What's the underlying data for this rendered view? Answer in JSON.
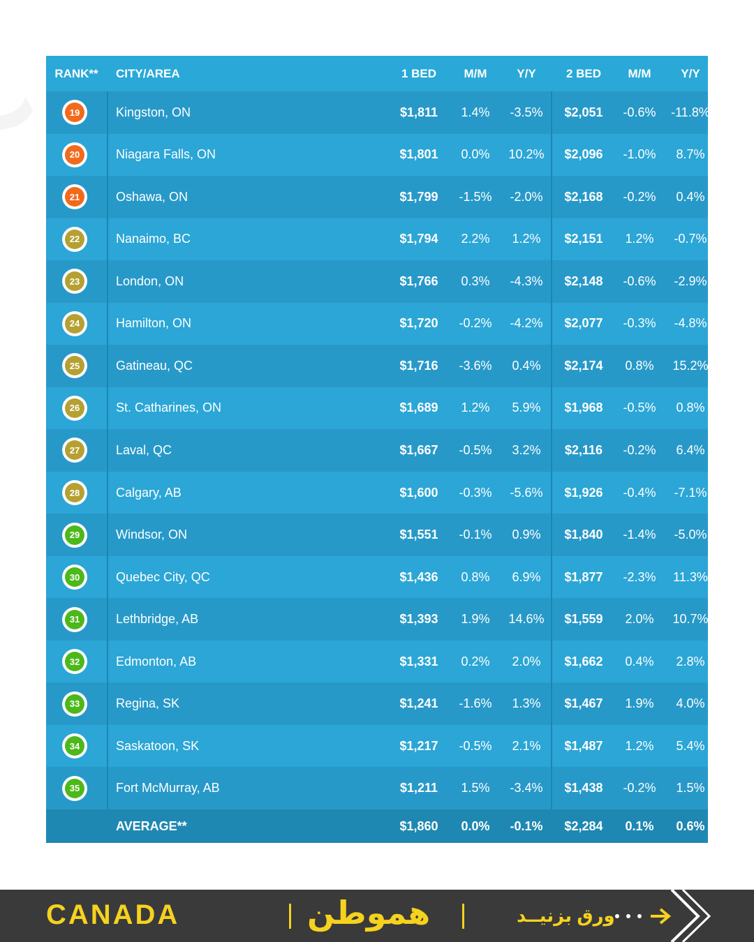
{
  "table": {
    "columns": [
      "RANK**",
      "CITY/AREA",
      "1 BED",
      "M/M",
      "Y/Y",
      "2 BED",
      "M/M",
      "Y/Y"
    ],
    "rows": [
      {
        "rank": "19",
        "color": "#f26a1b",
        "cells": [
          "Kingston, ON",
          "$1,811",
          "1.4%",
          "-3.5%",
          "$2,051",
          "-0.6%",
          "-11.8%"
        ]
      },
      {
        "rank": "20",
        "color": "#f26a1b",
        "cells": [
          "Niagara Falls, ON",
          "$1,801",
          "0.0%",
          "10.2%",
          "$2,096",
          "-1.0%",
          "8.7%"
        ]
      },
      {
        "rank": "21",
        "color": "#f26a1b",
        "cells": [
          "Oshawa, ON",
          "$1,799",
          "-1.5%",
          "-2.0%",
          "$2,168",
          "-0.2%",
          "0.4%"
        ]
      },
      {
        "rank": "22",
        "color": "#b5a032",
        "cells": [
          "Nanaimo, BC",
          "$1,794",
          "2.2%",
          "1.2%",
          "$2,151",
          "1.2%",
          "-0.7%"
        ]
      },
      {
        "rank": "23",
        "color": "#b5a032",
        "cells": [
          "London, ON",
          "$1,766",
          "0.3%",
          "-4.3%",
          "$2,148",
          "-0.6%",
          "-2.9%"
        ]
      },
      {
        "rank": "24",
        "color": "#b5a032",
        "cells": [
          "Hamilton, ON",
          "$1,720",
          "-0.2%",
          "-4.2%",
          "$2,077",
          "-0.3%",
          "-4.8%"
        ]
      },
      {
        "rank": "25",
        "color": "#b5a032",
        "cells": [
          "Gatineau, QC",
          "$1,716",
          "-3.6%",
          "0.4%",
          "$2,174",
          "0.8%",
          "15.2%"
        ]
      },
      {
        "rank": "26",
        "color": "#b5a032",
        "cells": [
          "St. Catharines, ON",
          "$1,689",
          "1.2%",
          "5.9%",
          "$1,968",
          "-0.5%",
          "0.8%"
        ]
      },
      {
        "rank": "27",
        "color": "#b5a032",
        "cells": [
          "Laval, QC",
          "$1,667",
          "-0.5%",
          "3.2%",
          "$2,116",
          "-0.2%",
          "6.4%"
        ]
      },
      {
        "rank": "28",
        "color": "#b5a032",
        "cells": [
          "Calgary, AB",
          "$1,600",
          "-0.3%",
          "-5.6%",
          "$1,926",
          "-0.4%",
          "-7.1%"
        ]
      },
      {
        "rank": "29",
        "color": "#4cb81a",
        "cells": [
          "Windsor, ON",
          "$1,551",
          "-0.1%",
          "0.9%",
          "$1,840",
          "-1.4%",
          "-5.0%"
        ]
      },
      {
        "rank": "30",
        "color": "#4cb81a",
        "cells": [
          "Quebec City, QC",
          "$1,436",
          "0.8%",
          "6.9%",
          "$1,877",
          "-2.3%",
          "11.3%"
        ]
      },
      {
        "rank": "31",
        "color": "#4cb81a",
        "cells": [
          "Lethbridge, AB",
          "$1,393",
          "1.9%",
          "14.6%",
          "$1,559",
          "2.0%",
          "10.7%"
        ]
      },
      {
        "rank": "32",
        "color": "#4cb81a",
        "cells": [
          "Edmonton, AB",
          "$1,331",
          "0.2%",
          "2.0%",
          "$1,662",
          "0.4%",
          "2.8%"
        ]
      },
      {
        "rank": "33",
        "color": "#4cb81a",
        "cells": [
          "Regina, SK",
          "$1,241",
          "-1.6%",
          "1.3%",
          "$1,467",
          "1.9%",
          "4.0%"
        ]
      },
      {
        "rank": "34",
        "color": "#4cb81a",
        "cells": [
          "Saskatoon, SK",
          "$1,217",
          "-0.5%",
          "2.1%",
          "$1,487",
          "1.2%",
          "5.4%"
        ]
      },
      {
        "rank": "35",
        "color": "#4cb81a",
        "cells": [
          "Fort McMurray, AB",
          "$1,211",
          "1.5%",
          "-3.4%",
          "$1,438",
          "-0.2%",
          "1.5%"
        ]
      }
    ],
    "average": {
      "cells": [
        "AVERAGE**",
        "$1,860",
        "0.0%",
        "-0.1%",
        "$2,284",
        "0.1%",
        "0.6%"
      ]
    }
  },
  "footer": {
    "country": "CANADA",
    "logo": "هموطن",
    "swipe": "ورق بزنیــد"
  }
}
